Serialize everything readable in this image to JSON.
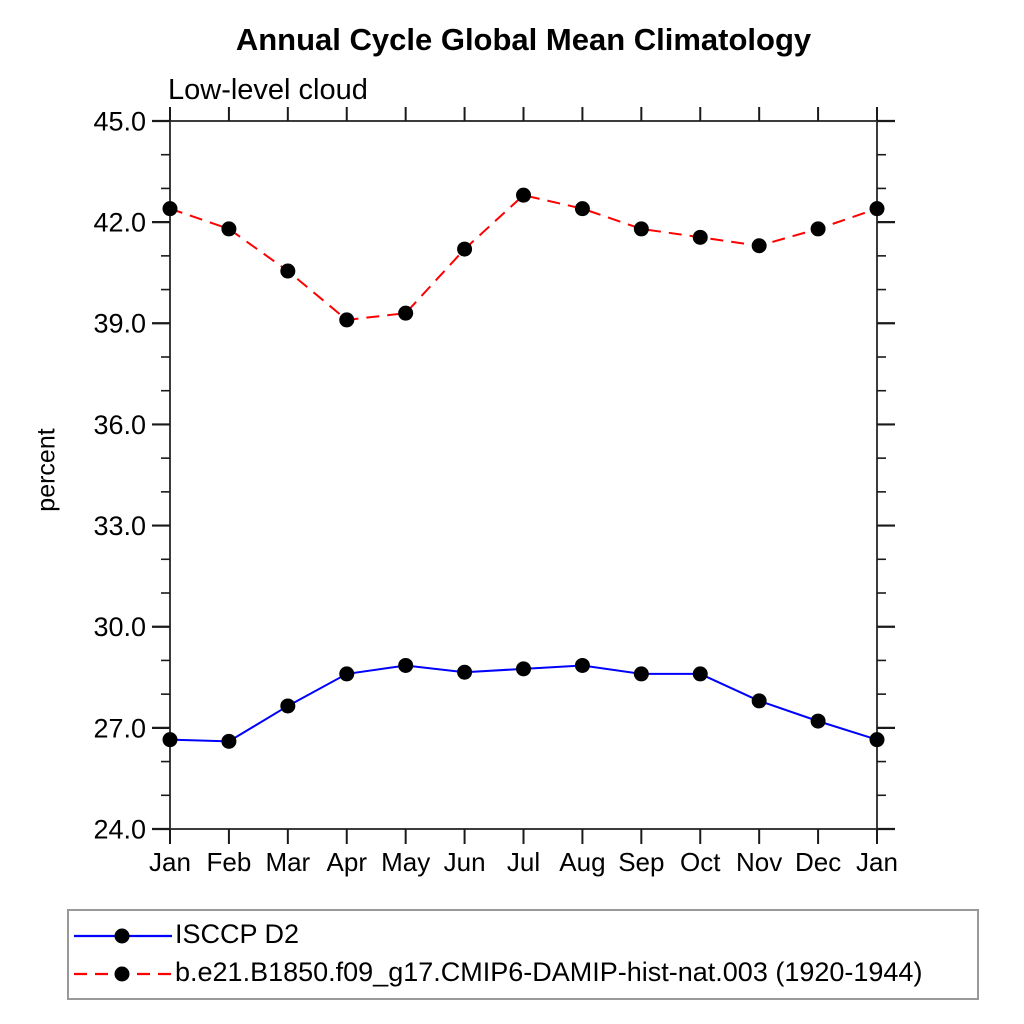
{
  "title": "Annual Cycle Global Mean Climatology",
  "subtitle": "Low-level cloud",
  "ylabel": "percent",
  "chart_data": {
    "type": "line",
    "categories": [
      "Jan",
      "Feb",
      "Mar",
      "Apr",
      "May",
      "Jun",
      "Jul",
      "Aug",
      "Sep",
      "Oct",
      "Nov",
      "Dec",
      "Jan"
    ],
    "series": [
      {
        "name": "ISCCP D2",
        "color": "#0000ff",
        "line_style": "solid",
        "marker": "filled-circle",
        "marker_color": "#000000",
        "values": [
          26.65,
          26.6,
          27.65,
          28.6,
          28.85,
          28.65,
          28.75,
          28.85,
          28.6,
          28.6,
          27.8,
          27.2,
          26.65
        ]
      },
      {
        "name": "b.e21.B1850.f09_g17.CMIP6-DAMIP-hist-nat.003 (1920-1944)",
        "color": "#ff0000",
        "line_style": "dashed",
        "marker": "filled-circle",
        "marker_color": "#000000",
        "values": [
          42.4,
          41.8,
          40.55,
          39.1,
          39.3,
          41.2,
          42.8,
          42.4,
          41.8,
          41.55,
          41.3,
          41.8,
          42.4
        ]
      }
    ],
    "xlabel": "",
    "ylabel": "percent",
    "ylim": [
      24.0,
      45.0
    ],
    "ytick_values": [
      24,
      27,
      30,
      33,
      36,
      39,
      42,
      45
    ],
    "ytick_labels": [
      "24.0",
      "27.0",
      "30.0",
      "33.0",
      "36.0",
      "39.0",
      "42.0",
      "45.0"
    ],
    "ytick_minor_step": 1,
    "grid": false,
    "frame": "box-with-outward-ticks",
    "legend_position": "bottom-left-outside"
  },
  "colors": {
    "axis": "#3c3c3c",
    "tick": "#1a1a1a",
    "legend_border": "#999999",
    "marker": "#000000"
  }
}
